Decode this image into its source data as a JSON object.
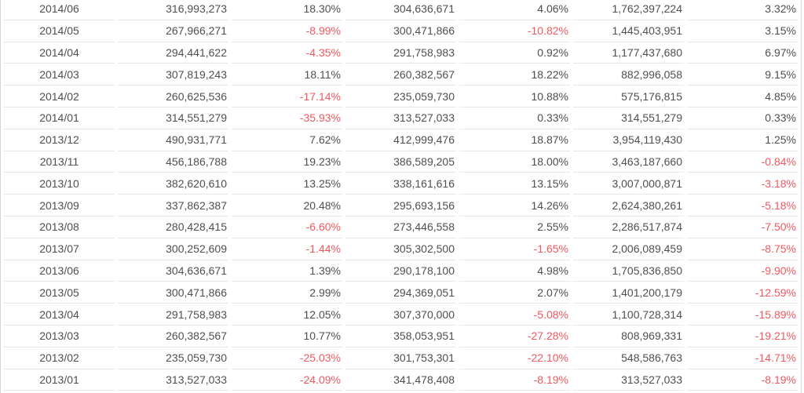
{
  "colors": {
    "text_primary": "#4f4f4f",
    "negative_red": "#f2585f",
    "row_separator": "#e7e7e7",
    "table_border": "#d8d8d8",
    "row_background": "#ffffff"
  },
  "table": {
    "rows": [
      {
        "date": "2014/06",
        "cells": [
          "316,993,273",
          "18.30%",
          "304,636,671",
          "4.06%",
          "1,762,397,224",
          "3.32%"
        ]
      },
      {
        "date": "2014/05",
        "cells": [
          "267,966,271",
          "-8.99%",
          "300,471,866",
          "-10.82%",
          "1,445,403,951",
          "3.15%"
        ]
      },
      {
        "date": "2014/04",
        "cells": [
          "294,441,622",
          "-4.35%",
          "291,758,983",
          "0.92%",
          "1,177,437,680",
          "6.97%"
        ]
      },
      {
        "date": "2014/03",
        "cells": [
          "307,819,243",
          "18.11%",
          "260,382,567",
          "18.22%",
          "882,996,058",
          "9.15%"
        ]
      },
      {
        "date": "2014/02",
        "cells": [
          "260,625,536",
          "-17.14%",
          "235,059,730",
          "10.88%",
          "575,176,815",
          "4.85%"
        ]
      },
      {
        "date": "2014/01",
        "cells": [
          "314,551,279",
          "-35.93%",
          "313,527,033",
          "0.33%",
          "314,551,279",
          "0.33%"
        ]
      },
      {
        "date": "2013/12",
        "cells": [
          "490,931,771",
          "7.62%",
          "412,999,476",
          "18.87%",
          "3,954,119,430",
          "1.25%"
        ]
      },
      {
        "date": "2013/11",
        "cells": [
          "456,186,788",
          "19.23%",
          "386,589,205",
          "18.00%",
          "3,463,187,660",
          "-0.84%"
        ]
      },
      {
        "date": "2013/10",
        "cells": [
          "382,620,610",
          "13.25%",
          "338,161,616",
          "13.15%",
          "3,007,000,871",
          "-3.18%"
        ]
      },
      {
        "date": "2013/09",
        "cells": [
          "337,862,387",
          "20.48%",
          "295,693,156",
          "14.26%",
          "2,624,380,261",
          "-5.18%"
        ]
      },
      {
        "date": "2013/08",
        "cells": [
          "280,428,415",
          "-6.60%",
          "273,446,558",
          "2.55%",
          "2,286,517,874",
          "-7.50%"
        ]
      },
      {
        "date": "2013/07",
        "cells": [
          "300,252,609",
          "-1.44%",
          "305,302,500",
          "-1.65%",
          "2,006,089,459",
          "-8.75%"
        ]
      },
      {
        "date": "2013/06",
        "cells": [
          "304,636,671",
          "1.39%",
          "290,178,100",
          "4.98%",
          "1,705,836,850",
          "-9.90%"
        ]
      },
      {
        "date": "2013/05",
        "cells": [
          "300,471,866",
          "2.99%",
          "294,369,051",
          "2.07%",
          "1,401,200,179",
          "-12.59%"
        ]
      },
      {
        "date": "2013/04",
        "cells": [
          "291,758,983",
          "12.05%",
          "307,370,000",
          "-5.08%",
          "1,100,728,314",
          "-15.89%"
        ]
      },
      {
        "date": "2013/03",
        "cells": [
          "260,382,567",
          "10.77%",
          "358,053,951",
          "-27.28%",
          "808,969,331",
          "-19.21%"
        ]
      },
      {
        "date": "2013/02",
        "cells": [
          "235,059,730",
          "-25.03%",
          "301,753,301",
          "-22.10%",
          "548,586,763",
          "-14.71%"
        ]
      },
      {
        "date": "2013/01",
        "cells": [
          "313,527,033",
          "-24.09%",
          "341,478,408",
          "-8.19%",
          "313,527,033",
          "-8.19%"
        ]
      }
    ]
  }
}
